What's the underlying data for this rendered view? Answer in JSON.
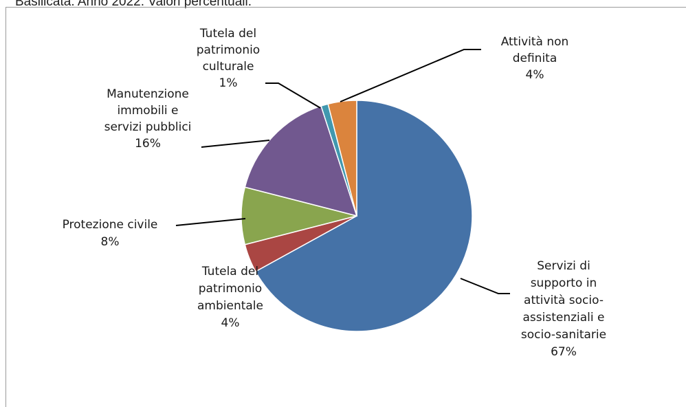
{
  "header": {
    "title": "Basilicata. Anno 2022. Valori percentuali."
  },
  "chart_data": {
    "type": "pie",
    "title": "",
    "start_angle_deg": 0,
    "direction": "clockwise",
    "slices": [
      {
        "label_lines": [
          "Servizi di",
          "supporto in",
          "attività socio-",
          "assistenziali e",
          "socio-sanitarie"
        ],
        "value": 67,
        "value_label": "67%",
        "color": "#4572A7"
      },
      {
        "label_lines": [
          "Tutela del",
          "patrimonio",
          "ambientale"
        ],
        "value": 4,
        "value_label": "4%",
        "color": "#AA4643"
      },
      {
        "label_lines": [
          "Protezione civile"
        ],
        "value": 8,
        "value_label": "8%",
        "color": "#89A54E"
      },
      {
        "label_lines": [
          "Manutenzione",
          "immobili e",
          "servizi pubblici"
        ],
        "value": 16,
        "value_label": "16%",
        "color": "#71588F"
      },
      {
        "label_lines": [
          "Tutela del",
          "patrimonio",
          "culturale"
        ],
        "value": 1,
        "value_label": "1%",
        "color": "#4198AF"
      },
      {
        "label_lines": [
          "Attività non",
          "definita"
        ],
        "value": 4,
        "value_label": "4%",
        "color": "#DB843D"
      }
    ]
  }
}
